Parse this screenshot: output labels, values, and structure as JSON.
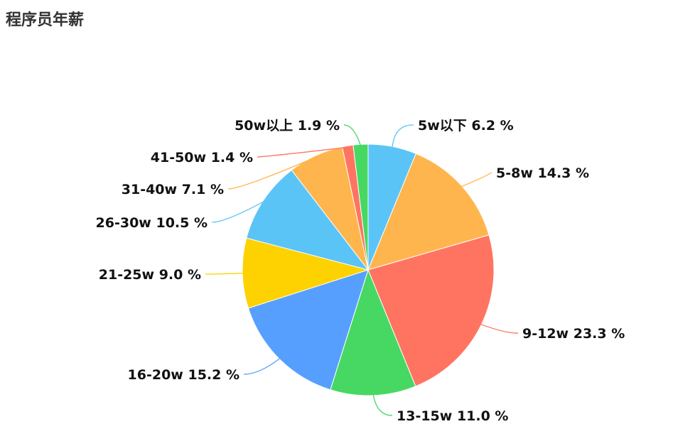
{
  "page": {
    "title": "程序员年薪"
  },
  "chart_data": {
    "type": "pie",
    "title": "程序员年薪",
    "slices": [
      {
        "label": "5w以下",
        "value": 6.2,
        "display": "6.2 %",
        "color": "#5bc4f6"
      },
      {
        "label": "5-8w",
        "value": 14.3,
        "display": "14.3 %",
        "color": "#ffb54d"
      },
      {
        "label": "9-12w",
        "value": 23.3,
        "display": "23.3 %",
        "color": "#ff7461"
      },
      {
        "label": "13-15w",
        "value": 11.0,
        "display": "11.0 %",
        "color": "#47d863"
      },
      {
        "label": "16-20w",
        "value": 15.2,
        "display": "15.2 %",
        "color": "#569ffe"
      },
      {
        "label": "21-25w",
        "value": 9.0,
        "display": "9.0 %",
        "color": "#fdd200"
      },
      {
        "label": "26-30w",
        "value": 10.5,
        "display": "10.5 %",
        "color": "#5bc4f6"
      },
      {
        "label": "31-40w",
        "value": 7.1,
        "display": "7.1 %",
        "color": "#ffb54d"
      },
      {
        "label": "41-50w",
        "value": 1.4,
        "display": "1.4 %",
        "color": "#ff7461"
      },
      {
        "label": "50w以上",
        "value": 1.9,
        "display": "1.9 %",
        "color": "#47d863"
      }
    ],
    "start_angle": "12 o'clock",
    "direction": "clockwise",
    "legend": "none"
  }
}
